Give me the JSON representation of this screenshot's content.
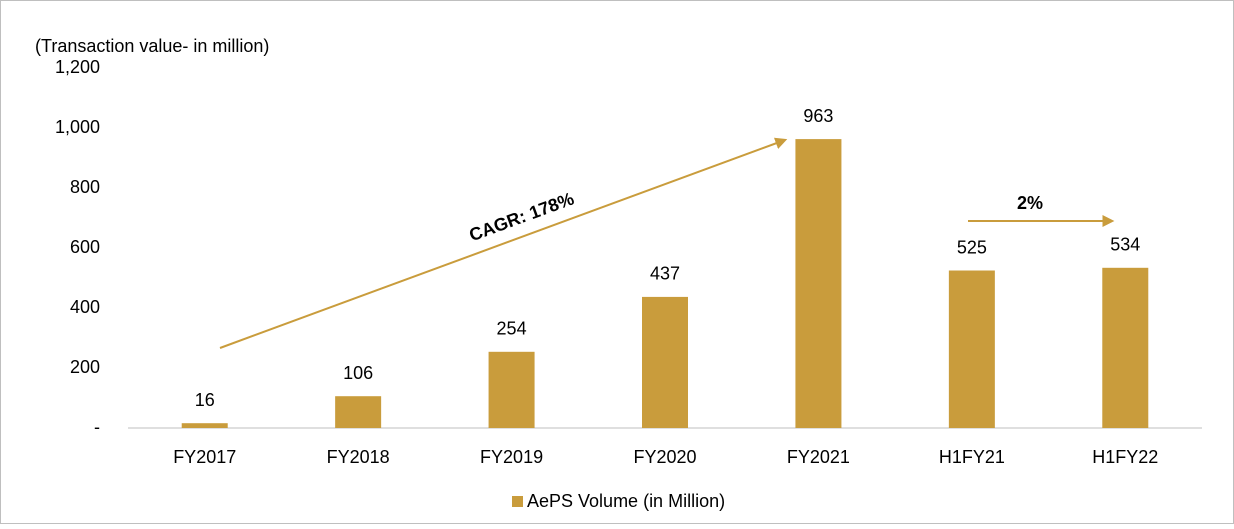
{
  "chart_data": {
    "type": "bar",
    "title": "(Transaction value- in million)",
    "categories": [
      "FY2017",
      "FY2018",
      "FY2019",
      "FY2020",
      "FY2021",
      "H1FY21",
      "H1FY22"
    ],
    "series": [
      {
        "name": "AePS Volume (in Million)",
        "color": "#c99c3c",
        "values": [
          16,
          106,
          254,
          437,
          963,
          525,
          534
        ]
      }
    ],
    "ylim": [
      0,
      1200
    ],
    "yticks": [
      {
        "value": 0,
        "label": "-"
      },
      200,
      400,
      600,
      800,
      {
        "value": 1000,
        "label": "1,000"
      },
      {
        "value": 1200,
        "label": "1,200"
      }
    ],
    "grid": false,
    "legend": "bottom",
    "annotations": [
      "CAGR: 178%",
      "2%"
    ]
  }
}
